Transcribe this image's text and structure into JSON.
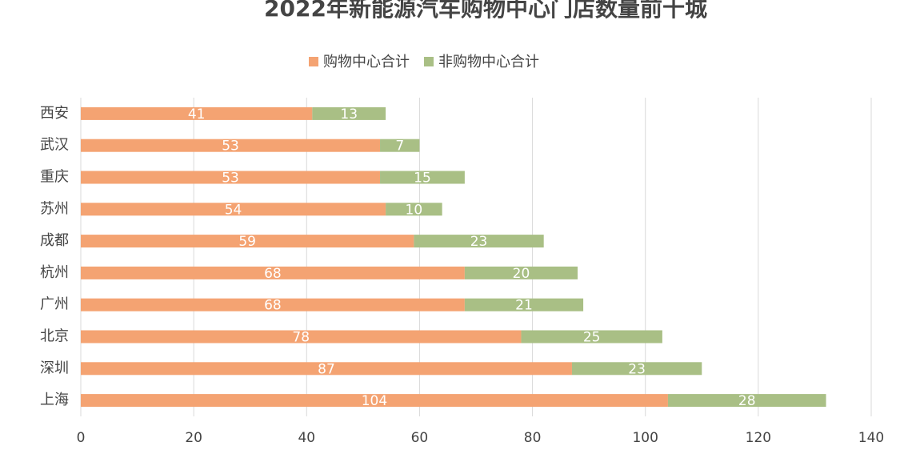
{
  "chart_data": {
    "type": "stacked-bar-horizontal",
    "title": "2022年新能源汽车购物中心门店数量前十城",
    "categories": [
      "西安",
      "武汉",
      "重庆",
      "苏州",
      "成都",
      "杭州",
      "广州",
      "北京",
      "深圳",
      "上海"
    ],
    "series": [
      {
        "name": "购物中心合计",
        "color": "#f4a372",
        "values": [
          41,
          53,
          53,
          54,
          59,
          68,
          68,
          78,
          87,
          104
        ]
      },
      {
        "name": "非购物中心合计",
        "color": "#a9bf85",
        "values": [
          13,
          7,
          15,
          10,
          23,
          20,
          21,
          25,
          23,
          28
        ]
      }
    ],
    "xlim": [
      0,
      140
    ],
    "xticks": [
      0,
      20,
      40,
      60,
      80,
      100,
      120,
      140
    ],
    "grid": true
  }
}
